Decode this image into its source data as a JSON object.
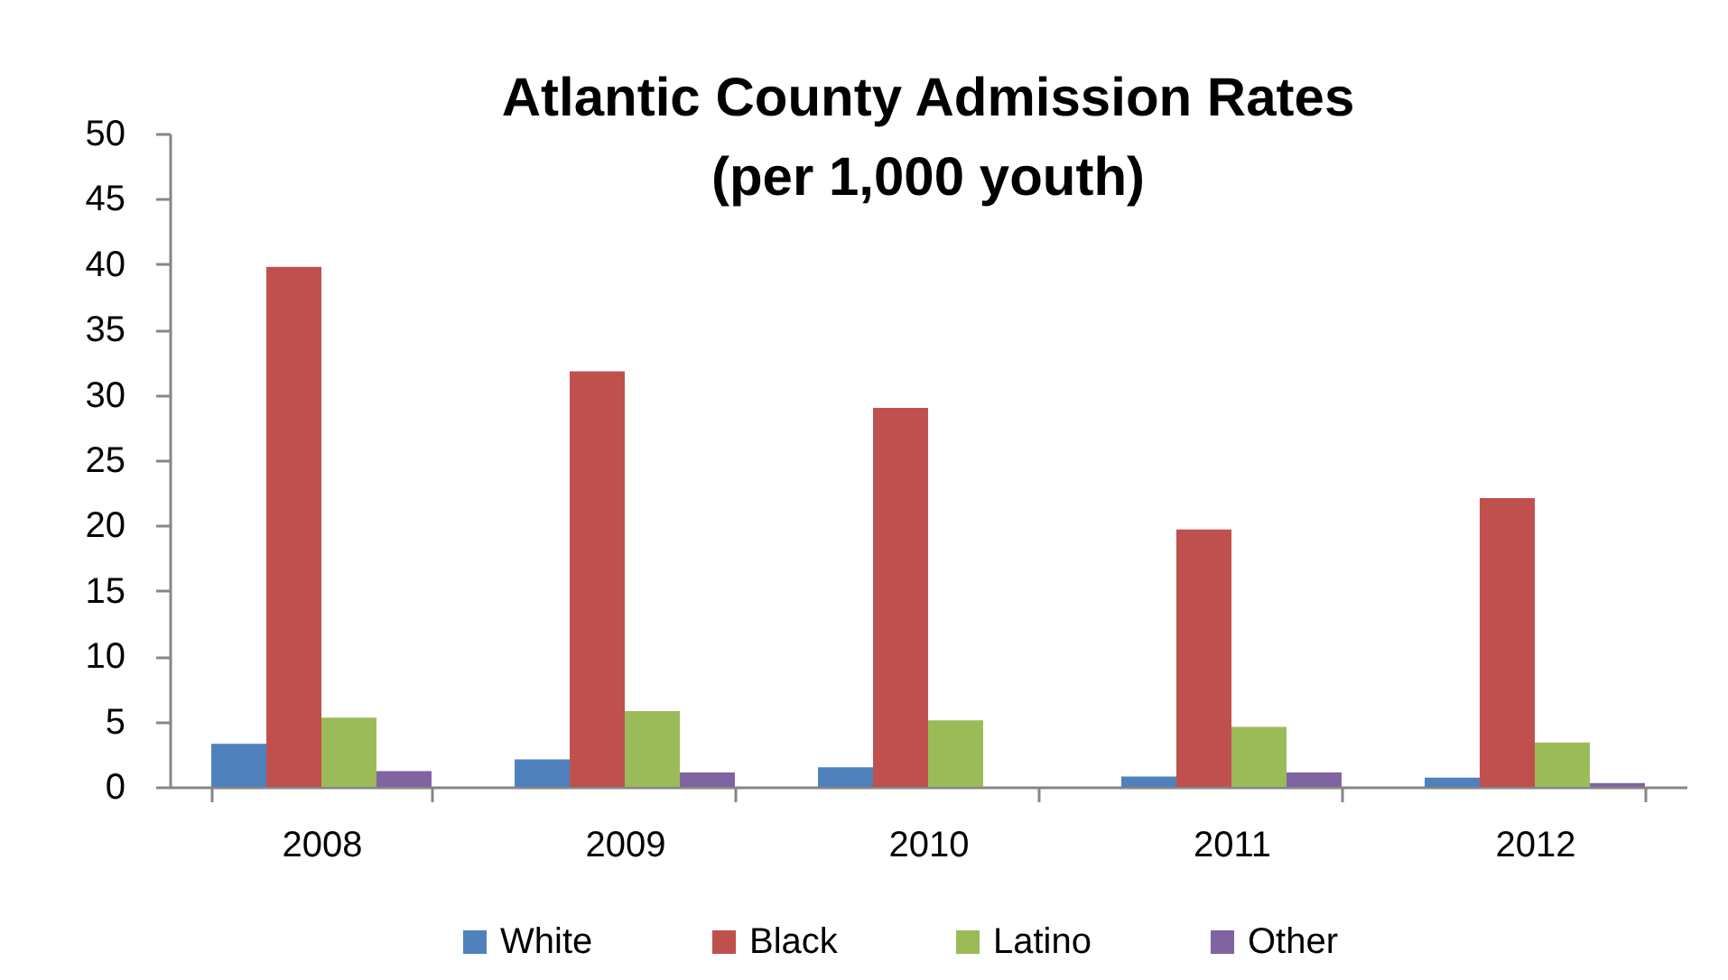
{
  "chart_data": {
    "type": "bar",
    "title": "Atlantic County Admission Rates",
    "subtitle": "(per 1,000 youth)",
    "categories": [
      "2008",
      "2009",
      "2010",
      "2011",
      "2012"
    ],
    "series": [
      {
        "name": "White",
        "color": "#4f81bd",
        "values": [
          3.3,
          2.1,
          1.5,
          0.8,
          0.7
        ]
      },
      {
        "name": "Black",
        "color": "#c0504d",
        "values": [
          39.8,
          31.8,
          29.0,
          19.7,
          22.1
        ]
      },
      {
        "name": "Latino",
        "color": "#9bbb59",
        "values": [
          5.3,
          5.8,
          5.1,
          4.6,
          3.4
        ]
      },
      {
        "name": "Other",
        "color": "#8064a2",
        "values": [
          1.2,
          1.1,
          null,
          1.1,
          0.3
        ]
      }
    ],
    "ylim": [
      0,
      50
    ],
    "yticks": [
      0,
      5,
      10,
      15,
      20,
      25,
      30,
      35,
      40,
      45,
      50
    ],
    "grid": false,
    "legend": "bottom"
  }
}
